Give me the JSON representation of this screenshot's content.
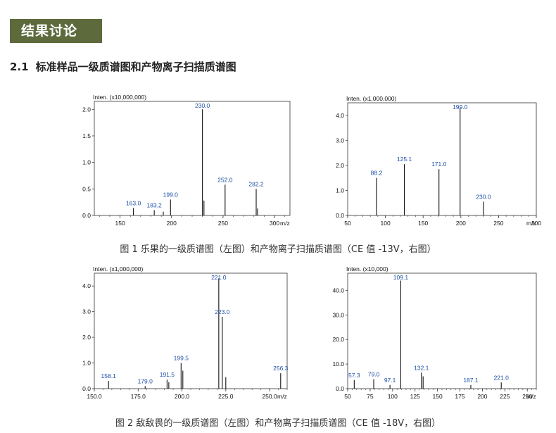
{
  "section": {
    "title": "结果讨论"
  },
  "subheading": {
    "number": "2.1",
    "text": "标准样品一级质谱图和产物离子扫描质谱图"
  },
  "captions": {
    "fig1": "图 1 乐果的一级质谱图（左图）和产物离子扫描质谱图（CE 值 -13V，右图）",
    "fig2": "图 2 敌敌畏的一级质谱图（左图）和产物离子扫描质谱图（CE 值 -18V，右图）"
  },
  "chart_data": [
    {
      "id": "fig1-left",
      "type": "bar",
      "ylabel": "Inten. (x10,000,000)",
      "xlabel": "m/z",
      "xlim": [
        125,
        315
      ],
      "ylim": [
        0,
        2.15
      ],
      "xticks": [
        150,
        200,
        250,
        300
      ],
      "yticks": [
        0.0,
        0.5,
        1.0,
        1.5,
        2.0
      ],
      "ytick_decimals": 1,
      "xtick_decimals": 0,
      "x": [
        163.0,
        183.2,
        192.0,
        199.0,
        230.0,
        231.5,
        252.0,
        282.2,
        283.5
      ],
      "values": [
        0.14,
        0.1,
        0.07,
        0.3,
        2.0,
        0.28,
        0.58,
        0.5,
        0.13
      ],
      "peak_labels": [
        {
          "x": 163.0,
          "label": "163.0"
        },
        {
          "x": 183.2,
          "label": "183.2"
        },
        {
          "x": 199.0,
          "label": "199.0"
        },
        {
          "x": 230.0,
          "label": "230.0"
        },
        {
          "x": 252.0,
          "label": "252.0"
        },
        {
          "x": 282.2,
          "label": "282.2"
        }
      ]
    },
    {
      "id": "fig1-right",
      "type": "bar",
      "ylabel": "Inten. (x1,000,000)",
      "xlabel": "m/z",
      "xlim": [
        50,
        300
      ],
      "ylim": [
        0,
        4.5
      ],
      "xticks": [
        50,
        100,
        150,
        200,
        250,
        300
      ],
      "yticks": [
        0.0,
        1.0,
        2.0,
        3.0,
        4.0
      ],
      "ytick_decimals": 1,
      "xtick_decimals": 0,
      "x": [
        88.2,
        125.1,
        171.0,
        199.0,
        230.0
      ],
      "values": [
        1.5,
        2.05,
        1.85,
        4.3,
        0.55
      ],
      "peak_labels": [
        {
          "x": 88.2,
          "label": "88.2"
        },
        {
          "x": 125.1,
          "label": "125.1"
        },
        {
          "x": 171.0,
          "label": "171.0"
        },
        {
          "x": 199.0,
          "label": "199.0"
        },
        {
          "x": 230.0,
          "label": "230.0"
        }
      ]
    },
    {
      "id": "fig2-left",
      "type": "bar",
      "ylabel": "Inten. (x1,000,000)",
      "xlabel": "m/z",
      "xlim": [
        150,
        260
      ],
      "ylim": [
        0,
        4.5
      ],
      "xticks": [
        150,
        175,
        200,
        225,
        250
      ],
      "yticks": [
        0.0,
        1.0,
        2.0,
        3.0,
        4.0
      ],
      "ytick_decimals": 1,
      "xtick_decimals": 1,
      "x": [
        158.1,
        179.0,
        191.5,
        192.5,
        199.5,
        200.5,
        221.0,
        223.0,
        225.0,
        256.3
      ],
      "values": [
        0.3,
        0.1,
        0.35,
        0.25,
        1.0,
        0.7,
        4.3,
        2.8,
        0.45,
        0.6
      ],
      "peak_labels": [
        {
          "x": 158.1,
          "label": "158.1"
        },
        {
          "x": 179.0,
          "label": "179.0"
        },
        {
          "x": 191.5,
          "label": "191.5"
        },
        {
          "x": 199.5,
          "label": "199.5"
        },
        {
          "x": 221.0,
          "label": "221.0"
        },
        {
          "x": 223.0,
          "label": "223.0"
        },
        {
          "x": 256.3,
          "label": "256.3"
        }
      ]
    },
    {
      "id": "fig2-right",
      "type": "bar",
      "ylabel": "Inten. (x10,000)",
      "xlabel": "m/z",
      "xlim": [
        50,
        260
      ],
      "ylim": [
        0,
        47
      ],
      "xticks": [
        50,
        75,
        100,
        125,
        150,
        175,
        200,
        225,
        250
      ],
      "yticks": [
        0,
        10,
        20,
        30,
        40
      ],
      "ytick_decimals": 1,
      "xtick_decimals": 0,
      "x": [
        57.3,
        79.0,
        97.1,
        109.1,
        132.1,
        134.0,
        187.1,
        221.0
      ],
      "values": [
        3.5,
        3.8,
        1.5,
        44,
        6.5,
        5.0,
        1.5,
        2.5
      ],
      "peak_labels": [
        {
          "x": 57.3,
          "label": "57.3"
        },
        {
          "x": 79.0,
          "label": "79.0"
        },
        {
          "x": 97.1,
          "label": "97.1"
        },
        {
          "x": 109.1,
          "label": "109.1"
        },
        {
          "x": 132.1,
          "label": "132.1"
        },
        {
          "x": 187.1,
          "label": "187.1"
        },
        {
          "x": 221.0,
          "label": "221.0"
        }
      ]
    }
  ]
}
